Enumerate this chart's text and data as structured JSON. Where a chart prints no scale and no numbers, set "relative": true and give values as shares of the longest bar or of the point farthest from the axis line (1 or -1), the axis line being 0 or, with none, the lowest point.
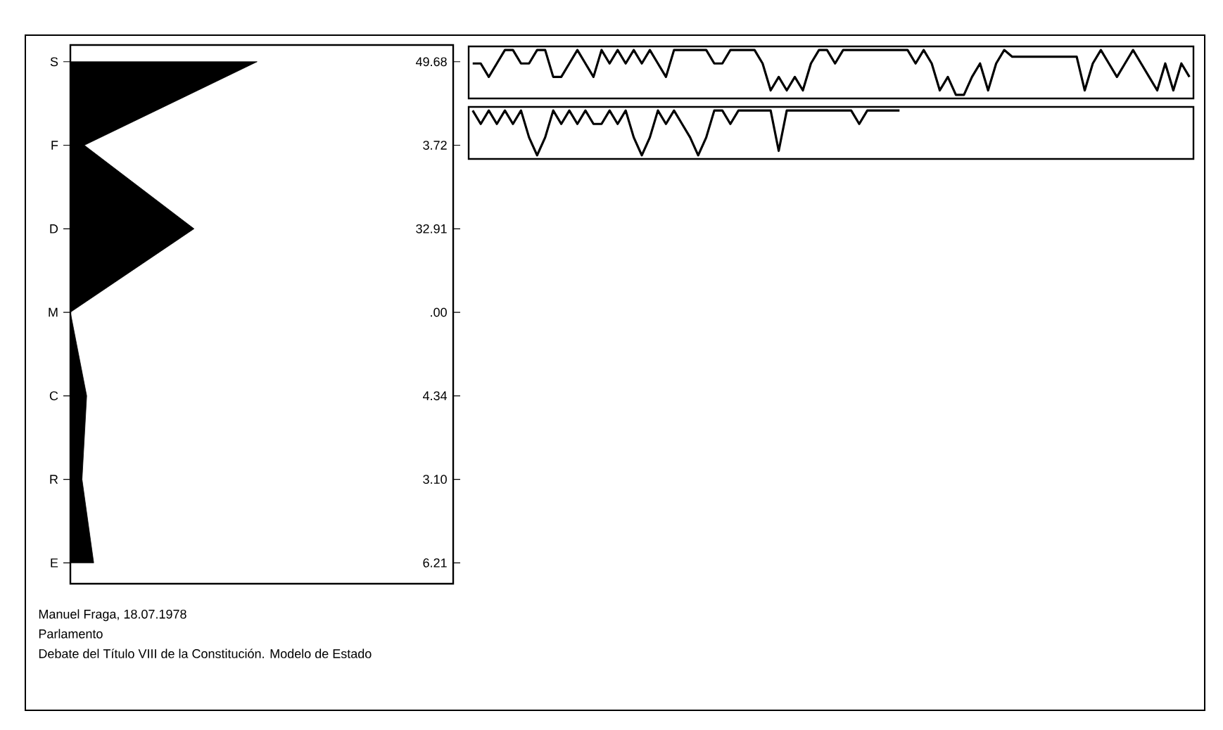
{
  "chart_data": [
    {
      "type": "area",
      "orientation": "horizontal",
      "categories": [
        "S",
        "F",
        "D",
        "M",
        "C",
        "R",
        "E"
      ],
      "values": [
        49.68,
        3.72,
        32.91,
        0.0,
        4.34,
        3.1,
        6.21
      ],
      "value_labels": [
        "49.68",
        "3.72",
        "32.91",
        ".00",
        "4.34",
        "3.10",
        "6.21"
      ],
      "color": "#000000",
      "tick_labels": "y",
      "annotations": [
        "Manuel Fraga, 18.07.1978",
        "Parlamento",
        "Debate del Título VIII de la Constitución. Modelo de Estado"
      ]
    },
    {
      "type": "line",
      "relative": true,
      "color": "#000000",
      "tick_labels": false,
      "categories": [
        null,
        null,
        null,
        null,
        null,
        null,
        null,
        null,
        null,
        null,
        null,
        null,
        null,
        null,
        null,
        null,
        null,
        null,
        null,
        null,
        null,
        null,
        null,
        null,
        null,
        null,
        null,
        null,
        null,
        null,
        null,
        null,
        null,
        null,
        null,
        null,
        null,
        null,
        null,
        null,
        null,
        null,
        null,
        null,
        null,
        null,
        null,
        null,
        null,
        null,
        null,
        null,
        null,
        null,
        null,
        null,
        null,
        null,
        null,
        null,
        null,
        null,
        null,
        null,
        null,
        null,
        null,
        null,
        null,
        null,
        null,
        null,
        null,
        null,
        null,
        null,
        null,
        null,
        null,
        null,
        null,
        null,
        null,
        null,
        null,
        null,
        null,
        null,
        null,
        null
      ],
      "values": [
        0.7,
        0.7,
        0.4,
        0.7,
        1,
        1,
        0.7,
        0.7,
        1,
        1,
        0.4,
        0.4,
        0.7,
        1,
        0.7,
        0.4,
        1,
        0.7,
        1,
        0.7,
        1,
        0.7,
        1,
        0.7,
        0.4,
        1,
        1,
        1,
        1,
        1,
        0.7,
        0.7,
        1,
        1,
        1,
        1,
        0.7,
        0.1,
        0.4,
        0.1,
        0.4,
        0.1,
        0.7,
        1,
        1,
        0.7,
        1,
        1,
        1,
        1,
        1,
        1,
        1,
        1,
        1,
        0.7,
        1,
        0.7,
        0.1,
        0.4,
        0,
        0,
        0.4,
        0.7,
        0.1,
        0.7,
        1,
        0.85,
        0.85,
        0.85,
        0.85,
        0.85,
        0.85,
        0.85,
        0.85,
        0.85,
        0.1,
        0.7,
        1,
        0.7,
        0.4,
        0.7,
        1,
        0.7,
        0.4,
        0.1,
        0.7,
        0.1,
        0.7,
        0.4
      ]
    },
    {
      "type": "line",
      "relative": true,
      "color": "#000000",
      "tick_labels": false,
      "categories": [
        null,
        null,
        null,
        null,
        null,
        null,
        null,
        null,
        null,
        null,
        null,
        null,
        null,
        null,
        null,
        null,
        null,
        null,
        null,
        null,
        null,
        null,
        null,
        null,
        null,
        null,
        null,
        null,
        null,
        null,
        null,
        null,
        null,
        null,
        null,
        null,
        null,
        null,
        null,
        null,
        null,
        null,
        null,
        null,
        null,
        null,
        null,
        null,
        null,
        null,
        null,
        null,
        null,
        null,
        null,
        null,
        null,
        null,
        null,
        null,
        null,
        null,
        null,
        null,
        null,
        null,
        null,
        null,
        null,
        null,
        null,
        null,
        null,
        null,
        null,
        null,
        null,
        null,
        null,
        null,
        null,
        null,
        null,
        null,
        null,
        null,
        null,
        null,
        null,
        null
      ],
      "values": [
        1,
        0.7,
        1,
        0.7,
        1,
        0.7,
        1,
        0.4,
        0,
        0.4,
        1,
        0.7,
        1,
        0.7,
        1,
        0.7,
        0.7,
        1,
        0.7,
        1,
        0.4,
        0,
        0.4,
        1,
        0.7,
        1,
        0.7,
        0.4,
        0,
        0.4,
        1,
        1,
        0.7,
        1,
        1,
        1,
        1,
        1,
        0.1,
        1,
        1,
        1,
        1,
        1,
        1,
        1,
        1,
        1,
        0.7,
        1,
        1,
        1,
        1,
        1,
        null,
        null,
        null,
        null,
        null,
        null,
        null,
        null,
        null,
        null,
        null,
        null,
        null,
        null,
        null,
        null,
        null,
        null,
        null,
        null,
        null,
        null,
        null,
        null,
        null,
        null,
        null,
        null,
        null,
        null,
        null,
        null,
        null,
        null,
        null,
        null
      ]
    }
  ]
}
